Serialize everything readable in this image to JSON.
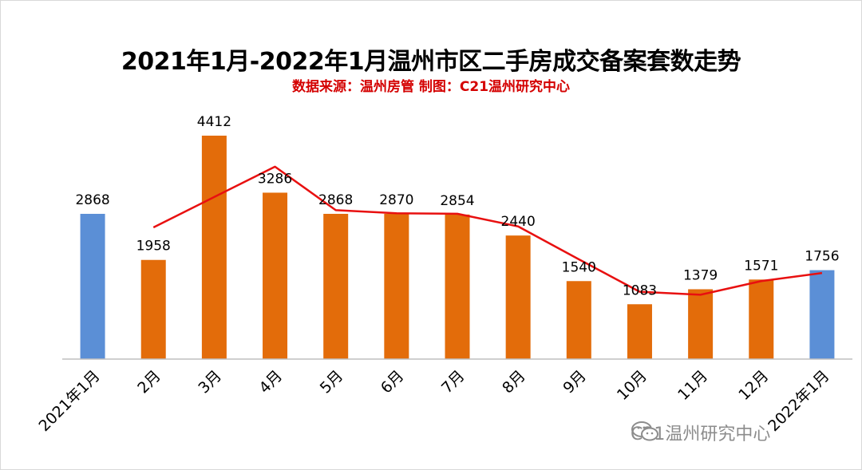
{
  "chart_data": {
    "type": "bar",
    "title": "2021年1月-2022年1月温州市区二手房成交备案套数走势",
    "subtitle": "数据来源：温州房管  制图：C21温州研究中心",
    "categories": [
      "2021年1月",
      "2月",
      "3月",
      "4月",
      "5月",
      "6月",
      "7月",
      "8月",
      "9月",
      "10月",
      "11月",
      "12月",
      "2022年1月"
    ],
    "values": [
      2868,
      1958,
      4412,
      3286,
      2868,
      2870,
      2854,
      2440,
      1540,
      1083,
      1379,
      1571,
      1756
    ],
    "data_labels": [
      "2868",
      "1958",
      "4412",
      "3286",
      "2868",
      "2870",
      "2854",
      "2440",
      "1540",
      "1083",
      "1379",
      "1571",
      "1756"
    ],
    "bar_colors": [
      "#5b8fd6",
      "#e36c0a",
      "#e36c0a",
      "#e36c0a",
      "#e36c0a",
      "#e36c0a",
      "#e36c0a",
      "#e36c0a",
      "#e36c0a",
      "#e36c0a",
      "#e36c0a",
      "#e36c0a",
      "#5b8fd6"
    ],
    "trend_line": {
      "color": "#e81010",
      "x_indices": [
        1,
        2,
        3,
        4,
        5,
        6,
        7,
        8,
        9,
        10,
        11,
        12
      ],
      "values": [
        2600,
        3200,
        3800,
        2940,
        2880,
        2870,
        2620,
        1970,
        1330,
        1270,
        1540,
        1700
      ]
    },
    "ylim": [
      0,
      4600
    ],
    "xlabel": "",
    "ylabel": "",
    "grid": false,
    "legend": "none"
  },
  "watermark": {
    "text": "C21温州研究中心",
    "icon": "wechat-icon"
  },
  "colors": {
    "title": "#000000",
    "subtitle": "#d40000",
    "axis": "#bfbfbf",
    "watermark": "#8c8c8c"
  }
}
